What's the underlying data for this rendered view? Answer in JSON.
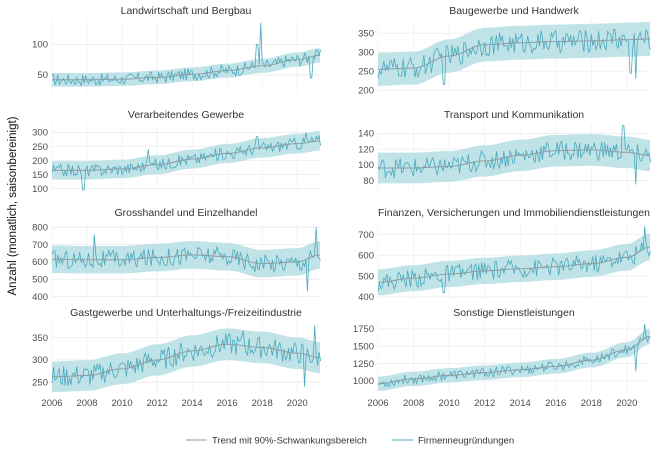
{
  "ylabel": "Anzahl (monatlich, saisonbereinigt)",
  "legend": {
    "trend_label": "Trend mit 90%-Schwankungsbereich",
    "series_label": "Firmenneugründungen"
  },
  "colors": {
    "band": "#b9e0e6",
    "line": "#4aa9bd",
    "trend": "#8a9ea3"
  },
  "chart_data": [
    {
      "type": "line",
      "title": "Landwirtschaft und Bergbau",
      "xlim": [
        2006,
        2021.3
      ],
      "ylim": [
        22,
        140
      ],
      "yticks": [
        50,
        100
      ],
      "trend": {
        "x": [
          2006,
          2008,
          2010,
          2012,
          2014,
          2016,
          2018,
          2020,
          2021.3
        ],
        "y": [
          42,
          42,
          43,
          46,
          51,
          57,
          65,
          75,
          82
        ]
      },
      "band_halfwidth": 12,
      "series": {
        "name": "Firmenneugründungen",
        "amplitude": 10,
        "spikes": [
          [
            2017.7,
            100
          ],
          [
            2017.9,
            135
          ],
          [
            2020.8,
            45
          ]
        ]
      }
    },
    {
      "type": "line",
      "title": "Baugewerbe und Handwerk",
      "xlim": [
        2006,
        2021.3
      ],
      "ylim": [
        195,
        385
      ],
      "yticks": [
        200,
        250,
        300,
        350
      ],
      "trend": {
        "x": [
          2006,
          2008,
          2010,
          2012,
          2014,
          2016,
          2018,
          2020,
          2021.3
        ],
        "y": [
          255,
          258,
          290,
          320,
          325,
          328,
          330,
          333,
          335
        ]
      },
      "band_halfwidth": 45,
      "series": {
        "name": "Firmenneugründungen",
        "amplitude": 30,
        "spikes": [
          [
            2009.7,
            215
          ],
          [
            2019.3,
            360
          ],
          [
            2020.2,
            245
          ],
          [
            2020.5,
            230
          ]
        ]
      }
    },
    {
      "type": "line",
      "title": "Verarbeitendes Gewerbe",
      "xlim": [
        2006,
        2021.3
      ],
      "ylim": [
        95,
        330
      ],
      "yticks": [
        100,
        150,
        200,
        250,
        300
      ],
      "trend": {
        "x": [
          2006,
          2008,
          2010,
          2012,
          2014,
          2016,
          2018,
          2020,
          2021.3
        ],
        "y": [
          165,
          165,
          170,
          185,
          205,
          225,
          245,
          260,
          270
        ]
      },
      "band_halfwidth": 35,
      "series": {
        "name": "Firmenneugründungen",
        "amplitude": 22,
        "spikes": [
          [
            2007.8,
            95
          ],
          [
            2011.5,
            240
          ],
          [
            2017.7,
            285
          ],
          [
            2020.5,
            300
          ]
        ]
      }
    },
    {
      "type": "line",
      "title": "Transport und Kommunikation",
      "xlim": [
        2006,
        2021.3
      ],
      "ylim": [
        68,
        152
      ],
      "yticks": [
        80,
        100,
        120,
        140
      ],
      "trend": {
        "x": [
          2006,
          2008,
          2010,
          2012,
          2014,
          2016,
          2018,
          2020,
          2021.3
        ],
        "y": [
          96,
          96,
          98,
          105,
          112,
          118,
          119,
          116,
          112
        ]
      },
      "band_halfwidth": 20,
      "series": {
        "name": "Firmenneugründungen",
        "amplitude": 13,
        "spikes": [
          [
            2019.8,
            150
          ],
          [
            2020.5,
            75
          ]
        ]
      }
    },
    {
      "type": "line",
      "title": "Grosshandel und Einzelhandel",
      "xlim": [
        2006,
        2021.3
      ],
      "ylim": [
        380,
        830
      ],
      "yticks": [
        400,
        500,
        600,
        700,
        800
      ],
      "trend": {
        "x": [
          2006,
          2008,
          2010,
          2012,
          2014,
          2016,
          2018,
          2020,
          2021.3
        ],
        "y": [
          615,
          612,
          612,
          625,
          640,
          630,
          590,
          600,
          640
        ]
      },
      "band_halfwidth": 80,
      "series": {
        "name": "Firmenneugründungen",
        "amplitude": 55,
        "spikes": [
          [
            2008.4,
            760
          ],
          [
            2020.6,
            430
          ],
          [
            2021.1,
            800
          ]
        ]
      }
    },
    {
      "type": "line",
      "title": "Finanzen, Versicherungen und Immobiliendienstleistungen",
      "xlim": [
        2006,
        2021.3
      ],
      "ylim": [
        385,
        760
      ],
      "yticks": [
        400,
        500,
        600,
        700
      ],
      "trend": {
        "x": [
          2006,
          2008,
          2010,
          2012,
          2014,
          2016,
          2018,
          2020,
          2021.3
        ],
        "y": [
          470,
          490,
          510,
          525,
          535,
          545,
          560,
          590,
          640
        ]
      },
      "band_halfwidth": 65,
      "series": {
        "name": "Firmenneugründungen",
        "amplitude": 45,
        "spikes": [
          [
            2009.7,
            420
          ],
          [
            2021.0,
            740
          ]
        ]
      }
    },
    {
      "type": "line",
      "title": "Gastgewerbe und Unterhaltungs-/Freizeitindustrie",
      "xlim": [
        2006,
        2021.3
      ],
      "ylim": [
        228,
        385
      ],
      "yticks": [
        250,
        300,
        350
      ],
      "trend": {
        "x": [
          2006,
          2008,
          2010,
          2012,
          2014,
          2016,
          2018,
          2020,
          2021.3
        ],
        "y": [
          262,
          265,
          280,
          300,
          320,
          335,
          328,
          315,
          305
        ]
      },
      "band_halfwidth": 35,
      "series": {
        "name": "Firmenneugründungen",
        "amplitude": 25,
        "spikes": [
          [
            2016.9,
            365
          ],
          [
            2020.4,
            240
          ],
          [
            2021.0,
            378
          ]
        ]
      }
    },
    {
      "type": "line",
      "title": "Sonstige Dienstleistungen",
      "xlim": [
        2006,
        2021.3
      ],
      "ylim": [
        840,
        1850
      ],
      "yticks": [
        1000,
        1250,
        1500,
        1750
      ],
      "trend": {
        "x": [
          2006,
          2008,
          2010,
          2012,
          2014,
          2016,
          2018,
          2020,
          2021.3
        ],
        "y": [
          960,
          1030,
          1080,
          1120,
          1160,
          1210,
          1300,
          1450,
          1640
        ]
      },
      "band_halfwidth": 110,
      "series": {
        "name": "Firmenneugründungen",
        "amplitude": 70,
        "spikes": [
          [
            2020.5,
            1140
          ],
          [
            2021.0,
            1820
          ]
        ]
      }
    }
  ],
  "xticks": [
    "2006",
    "2008",
    "2010",
    "2012",
    "2014",
    "2016",
    "2018",
    "2020"
  ],
  "xtick_values": [
    2006,
    2008,
    2010,
    2012,
    2014,
    2016,
    2018,
    2020
  ]
}
